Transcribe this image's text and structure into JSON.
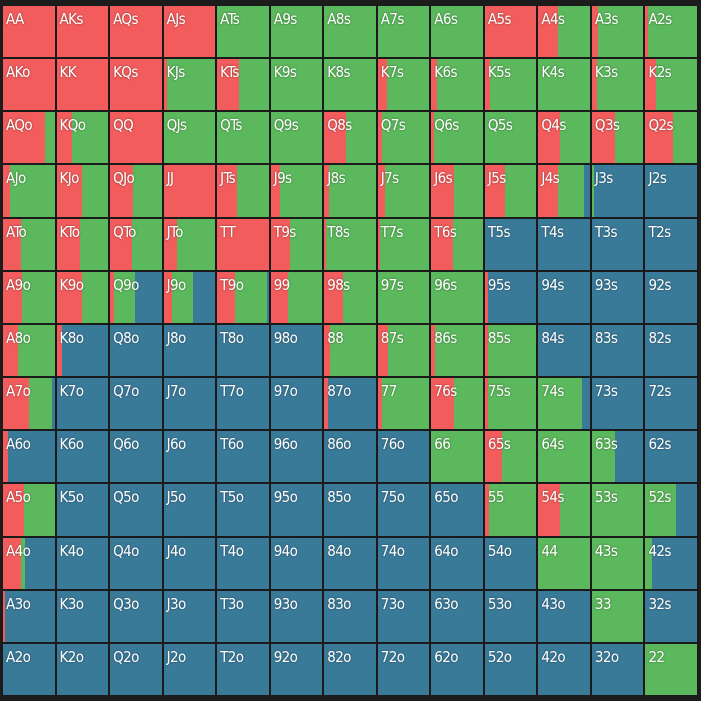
{
  "colors": {
    "raise": "#f25c5c",
    "call": "#5cb85c",
    "fold": "#3a7a99"
  },
  "rows": [
    [
      [
        "AA",
        1,
        0
      ],
      [
        "AKs",
        1,
        0
      ],
      [
        "AQs",
        1,
        0
      ],
      [
        "AJs",
        1,
        0
      ],
      [
        "ATs",
        0,
        1
      ],
      [
        "A9s",
        0,
        1
      ],
      [
        "A8s",
        0,
        1
      ],
      [
        "A7s",
        0,
        1
      ],
      [
        "A6s",
        0,
        1
      ],
      [
        "A5s",
        1,
        0
      ],
      [
        "A4s",
        0.39,
        0.61
      ],
      [
        "A3s",
        0.12,
        0.88
      ],
      [
        "A2s",
        0.05,
        0.95
      ]
    ],
    [
      [
        "AKo",
        1,
        0
      ],
      [
        "KK",
        1,
        0
      ],
      [
        "KQs",
        1,
        0
      ],
      [
        "KJs",
        0.06,
        0.94
      ],
      [
        "KTs",
        0.43,
        0.57
      ],
      [
        "K9s",
        0,
        1
      ],
      [
        "K8s",
        0,
        1
      ],
      [
        "K7s",
        0.17,
        0.83
      ],
      [
        "K6s",
        0.11,
        0.89
      ],
      [
        "K5s",
        0.1,
        0.9
      ],
      [
        "K4s",
        0,
        1
      ],
      [
        "K3s",
        0.1,
        0.9
      ],
      [
        "K2s",
        0.21,
        0.79
      ]
    ],
    [
      [
        "AQo",
        0.81,
        0.19
      ],
      [
        "KQo",
        0.3,
        0.7
      ],
      [
        "QQ",
        1,
        0
      ],
      [
        "QJs",
        0,
        1
      ],
      [
        "QTs",
        0,
        1
      ],
      [
        "Q9s",
        0,
        1
      ],
      [
        "Q8s",
        0.43,
        0.57
      ],
      [
        "Q7s",
        0.08,
        0.92
      ],
      [
        "Q6s",
        0.06,
        0.94
      ],
      [
        "Q5s",
        0,
        1
      ],
      [
        "Q4s",
        0.42,
        0.58
      ],
      [
        "Q3s",
        0.45,
        0.55
      ],
      [
        "Q2s",
        0.53,
        0.47
      ]
    ],
    [
      [
        "AJo",
        0.13,
        0.87
      ],
      [
        "KJo",
        0.49,
        0.51
      ],
      [
        "QJo",
        0.45,
        0.55
      ],
      [
        "JJ",
        1,
        0
      ],
      [
        "JTs",
        0.38,
        0.62
      ],
      [
        "J9s",
        0.19,
        0.81
      ],
      [
        "J8s",
        0.09,
        0.91
      ],
      [
        "J7s",
        0.15,
        0.85
      ],
      [
        "J6s",
        0.45,
        0.55
      ],
      [
        "J5s",
        0.4,
        0.6
      ],
      [
        "J4s",
        0.38,
        0.51
      ],
      [
        "J3s",
        0,
        0.04
      ],
      [
        "J2s",
        0,
        0
      ]
    ],
    [
      [
        "ATo",
        0.34,
        0.66
      ],
      [
        "KTo",
        0.45,
        0.55
      ],
      [
        "QTo",
        0.42,
        0.58
      ],
      [
        "JTo",
        0.26,
        0.74
      ],
      [
        "TT",
        1,
        0
      ],
      [
        "T9s",
        0.38,
        0.62
      ],
      [
        "T8s",
        0.04,
        0.96
      ],
      [
        "T7s",
        0.04,
        0.96
      ],
      [
        "T6s",
        0.43,
        0.57
      ],
      [
        "T5s",
        0,
        0
      ],
      [
        "T4s",
        0,
        0
      ],
      [
        "T3s",
        0,
        0
      ],
      [
        "T2s",
        0,
        0
      ]
    ],
    [
      [
        "A9o",
        0.36,
        0.64
      ],
      [
        "K9o",
        0.49,
        0.51
      ],
      [
        "Q9o",
        0.07,
        0.42
      ],
      [
        "J9o",
        0.17,
        0.4
      ],
      [
        "T9o",
        0.34,
        0.62
      ],
      [
        "99",
        0.34,
        0.66
      ],
      [
        "98s",
        0.36,
        0.64
      ],
      [
        "97s",
        0,
        1
      ],
      [
        "96s",
        0,
        1
      ],
      [
        "95s",
        0.06,
        0
      ],
      [
        "94s",
        0,
        0
      ],
      [
        "93s",
        0,
        0
      ],
      [
        "92s",
        0,
        0
      ]
    ],
    [
      [
        "A8o",
        0.3,
        0.7
      ],
      [
        "K8o",
        0.11,
        0
      ],
      [
        "Q8o",
        0,
        0
      ],
      [
        "J8o",
        0,
        0
      ],
      [
        "T8o",
        0,
        0
      ],
      [
        "98o",
        0,
        0
      ],
      [
        "88",
        0.11,
        0.89
      ],
      [
        "87s",
        0.19,
        0.81
      ],
      [
        "86s",
        0.08,
        0.92
      ],
      [
        "85s",
        0.06,
        0.94
      ],
      [
        "84s",
        0,
        0
      ],
      [
        "83s",
        0,
        0
      ],
      [
        "82s",
        0,
        0
      ]
    ],
    [
      [
        "A7o",
        0.51,
        0.45
      ],
      [
        "K7o",
        0,
        0
      ],
      [
        "Q7o",
        0,
        0
      ],
      [
        "J7o",
        0,
        0
      ],
      [
        "T7o",
        0,
        0
      ],
      [
        "97o",
        0,
        0
      ],
      [
        "87o",
        0.08,
        0
      ],
      [
        "77",
        0.08,
        0.92
      ],
      [
        "76s",
        0.45,
        0.55
      ],
      [
        "75s",
        0.06,
        0.94
      ],
      [
        "74s",
        0,
        0.85
      ],
      [
        "73s",
        0,
        0
      ],
      [
        "72s",
        0,
        0
      ]
    ],
    [
      [
        "A6o",
        0.09,
        0
      ],
      [
        "K6o",
        0,
        0
      ],
      [
        "Q6o",
        0,
        0
      ],
      [
        "J6o",
        0,
        0
      ],
      [
        "T6o",
        0,
        0
      ],
      [
        "96o",
        0,
        0
      ],
      [
        "86o",
        0,
        0
      ],
      [
        "76o",
        0,
        0
      ],
      [
        "66",
        0,
        1
      ],
      [
        "65s",
        0.34,
        0.66
      ],
      [
        "64s",
        0,
        1
      ],
      [
        "63s",
        0,
        0.45
      ],
      [
        "62s",
        0,
        0
      ]
    ],
    [
      [
        "A5o",
        0.4,
        0.6
      ],
      [
        "K5o",
        0,
        0
      ],
      [
        "Q5o",
        0,
        0
      ],
      [
        "J5o",
        0,
        0
      ],
      [
        "T5o",
        0,
        0
      ],
      [
        "95o",
        0,
        0
      ],
      [
        "85o",
        0,
        0
      ],
      [
        "75o",
        0,
        0
      ],
      [
        "65o",
        0,
        0
      ],
      [
        "55",
        0.08,
        0.92
      ],
      [
        "54s",
        0.42,
        0.58
      ],
      [
        "53s",
        0,
        1
      ],
      [
        "52s",
        0,
        0.6
      ]
    ],
    [
      [
        "A4o",
        0.34,
        0.09
      ],
      [
        "K4o",
        0,
        0
      ],
      [
        "Q4o",
        0,
        0
      ],
      [
        "J4o",
        0,
        0
      ],
      [
        "T4o",
        0,
        0
      ],
      [
        "94o",
        0,
        0
      ],
      [
        "84o",
        0,
        0
      ],
      [
        "74o",
        0,
        0
      ],
      [
        "64o",
        0,
        0
      ],
      [
        "54o",
        0,
        0
      ],
      [
        "44",
        0,
        1
      ],
      [
        "43s",
        0,
        1
      ],
      [
        "42s",
        0,
        0.13
      ]
    ],
    [
      [
        "A3o",
        0.04,
        0
      ],
      [
        "K3o",
        0,
        0
      ],
      [
        "Q3o",
        0,
        0
      ],
      [
        "J3o",
        0,
        0
      ],
      [
        "T3o",
        0,
        0
      ],
      [
        "93o",
        0,
        0
      ],
      [
        "83o",
        0,
        0
      ],
      [
        "73o",
        0,
        0
      ],
      [
        "63o",
        0,
        0
      ],
      [
        "53o",
        0,
        0
      ],
      [
        "43o",
        0,
        0
      ],
      [
        "33",
        0,
        1
      ],
      [
        "32s",
        0,
        0
      ]
    ],
    [
      [
        "A2o",
        0,
        0
      ],
      [
        "K2o",
        0,
        0
      ],
      [
        "Q2o",
        0,
        0
      ],
      [
        "J2o",
        0,
        0
      ],
      [
        "T2o",
        0,
        0
      ],
      [
        "92o",
        0,
        0
      ],
      [
        "82o",
        0,
        0
      ],
      [
        "72o",
        0,
        0
      ],
      [
        "62o",
        0,
        0
      ],
      [
        "52o",
        0,
        0
      ],
      [
        "42o",
        0,
        0
      ],
      [
        "32o",
        0,
        0
      ],
      [
        "22",
        0,
        1
      ]
    ]
  ]
}
